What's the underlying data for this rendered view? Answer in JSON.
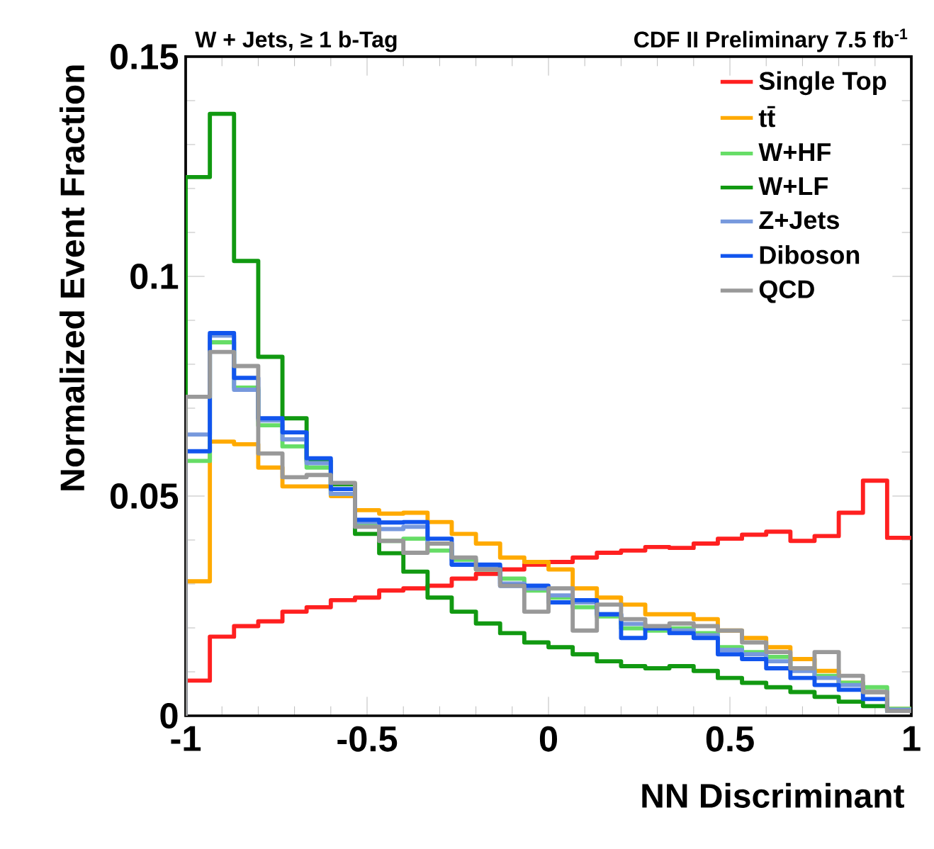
{
  "chart_data": {
    "type": "histogram",
    "title": "W + Jets, ≥ 1 b-Tag",
    "subtitle": "CDF II Preliminary 7.5 fb$^{-1}$",
    "xlabel": "NN Discriminant",
    "ylabel": "Normalized Event Fraction",
    "bins": [
      -1,
      -0.9333,
      -0.8667,
      -0.8,
      -0.7333,
      -0.6667,
      -0.6,
      -0.5333,
      -0.4667,
      -0.4,
      -0.3333,
      -0.2667,
      -0.2,
      -0.1333,
      -0.0667,
      0,
      0.0667,
      0.1333,
      0.2,
      0.2667,
      0.3333,
      0.4,
      0.4667,
      0.5333,
      0.6,
      0.6667,
      0.7333,
      0.8,
      0.8667,
      0.9333,
      1
    ],
    "series": [
      {
        "name": "Single Top",
        "color": "#ff2020",
        "values": [
          0.008,
          0.018,
          0.0204,
          0.0215,
          0.0237,
          0.0247,
          0.0263,
          0.0269,
          0.0285,
          0.029,
          0.0296,
          0.0312,
          0.0323,
          0.0333,
          0.0344,
          0.035,
          0.036,
          0.0371,
          0.0376,
          0.0384,
          0.0382,
          0.0392,
          0.0403,
          0.0412,
          0.0419,
          0.0398,
          0.0409,
          0.0462,
          0.0535,
          0.0405
        ]
      },
      {
        "name": "tt̄",
        "color": "#ffaa00",
        "values": [
          0.0306,
          0.0624,
          0.0618,
          0.0565,
          0.0522,
          0.0522,
          0.05,
          0.0468,
          0.046,
          0.0462,
          0.0441,
          0.0414,
          0.0392,
          0.036,
          0.035,
          0.0333,
          0.029,
          0.0269,
          0.0253,
          0.0231,
          0.0231,
          0.022,
          0.0194,
          0.0177,
          0.0156,
          0.0129,
          0.0102,
          0.0075,
          0.0054,
          0.0016
        ]
      },
      {
        "name": "W+HF",
        "color": "#66dd66",
        "values": [
          0.058,
          0.085,
          0.0747,
          0.0661,
          0.0613,
          0.0565,
          0.0505,
          0.0435,
          0.0398,
          0.0403,
          0.0376,
          0.0355,
          0.0333,
          0.0312,
          0.0285,
          0.0269,
          0.0247,
          0.0226,
          0.0199,
          0.0194,
          0.0199,
          0.0188,
          0.0156,
          0.0145,
          0.0134,
          0.0108,
          0.0091,
          0.0075,
          0.0065,
          0.0016
        ]
      },
      {
        "name": "W+LF",
        "color": "#119911",
        "values": [
          0.1226,
          0.137,
          0.1035,
          0.0817,
          0.0677,
          0.058,
          0.0527,
          0.0414,
          0.037,
          0.0328,
          0.0269,
          0.0237,
          0.021,
          0.0188,
          0.0167,
          0.0156,
          0.014,
          0.0124,
          0.0113,
          0.0108,
          0.0113,
          0.0102,
          0.0086,
          0.0075,
          0.0065,
          0.0054,
          0.0043,
          0.0032,
          0.0022,
          0.0011
        ]
      },
      {
        "name": "Z+Jets",
        "color": "#7799dd",
        "values": [
          0.064,
          0.0865,
          0.0742,
          0.0672,
          0.0629,
          0.0575,
          0.0505,
          0.0441,
          0.0425,
          0.043,
          0.0392,
          0.0344,
          0.0339,
          0.0301,
          0.029,
          0.0274,
          0.0258,
          0.0231,
          0.0209,
          0.0199,
          0.0194,
          0.0183,
          0.015,
          0.014,
          0.0124,
          0.0102,
          0.0086,
          0.007,
          0.0054,
          0.0014
        ]
      },
      {
        "name": "Diboson",
        "color": "#1155ee",
        "values": [
          0.0602,
          0.0871,
          0.0769,
          0.0677,
          0.0645,
          0.0586,
          0.0516,
          0.0446,
          0.044,
          0.0441,
          0.0403,
          0.0344,
          0.0344,
          0.0296,
          0.0296,
          0.0258,
          0.0263,
          0.0231,
          0.0177,
          0.0199,
          0.0188,
          0.0177,
          0.014,
          0.0129,
          0.0108,
          0.0086,
          0.007,
          0.0059,
          0.0038,
          0.0011
        ]
      },
      {
        "name": "QCD",
        "color": "#999999",
        "values": [
          0.0726,
          0.0828,
          0.0796,
          0.0597,
          0.0543,
          0.0548,
          0.053,
          0.043,
          0.0398,
          0.0371,
          0.0392,
          0.036,
          0.0333,
          0.0296,
          0.0237,
          0.029,
          0.0194,
          0.0253,
          0.022,
          0.0204,
          0.021,
          0.0204,
          0.0194,
          0.0167,
          0.0145,
          0.0108,
          0.0145,
          0.0091,
          0.0054,
          0.0011
        ]
      }
    ],
    "xlim": [
      -1,
      1
    ],
    "ylim": [
      0,
      0.15
    ],
    "xticks": [
      -1,
      -0.5,
      0,
      0.5,
      1
    ],
    "yticks": [
      0,
      0.05,
      0.1,
      0.15
    ],
    "legend": "top right",
    "grid": false
  }
}
